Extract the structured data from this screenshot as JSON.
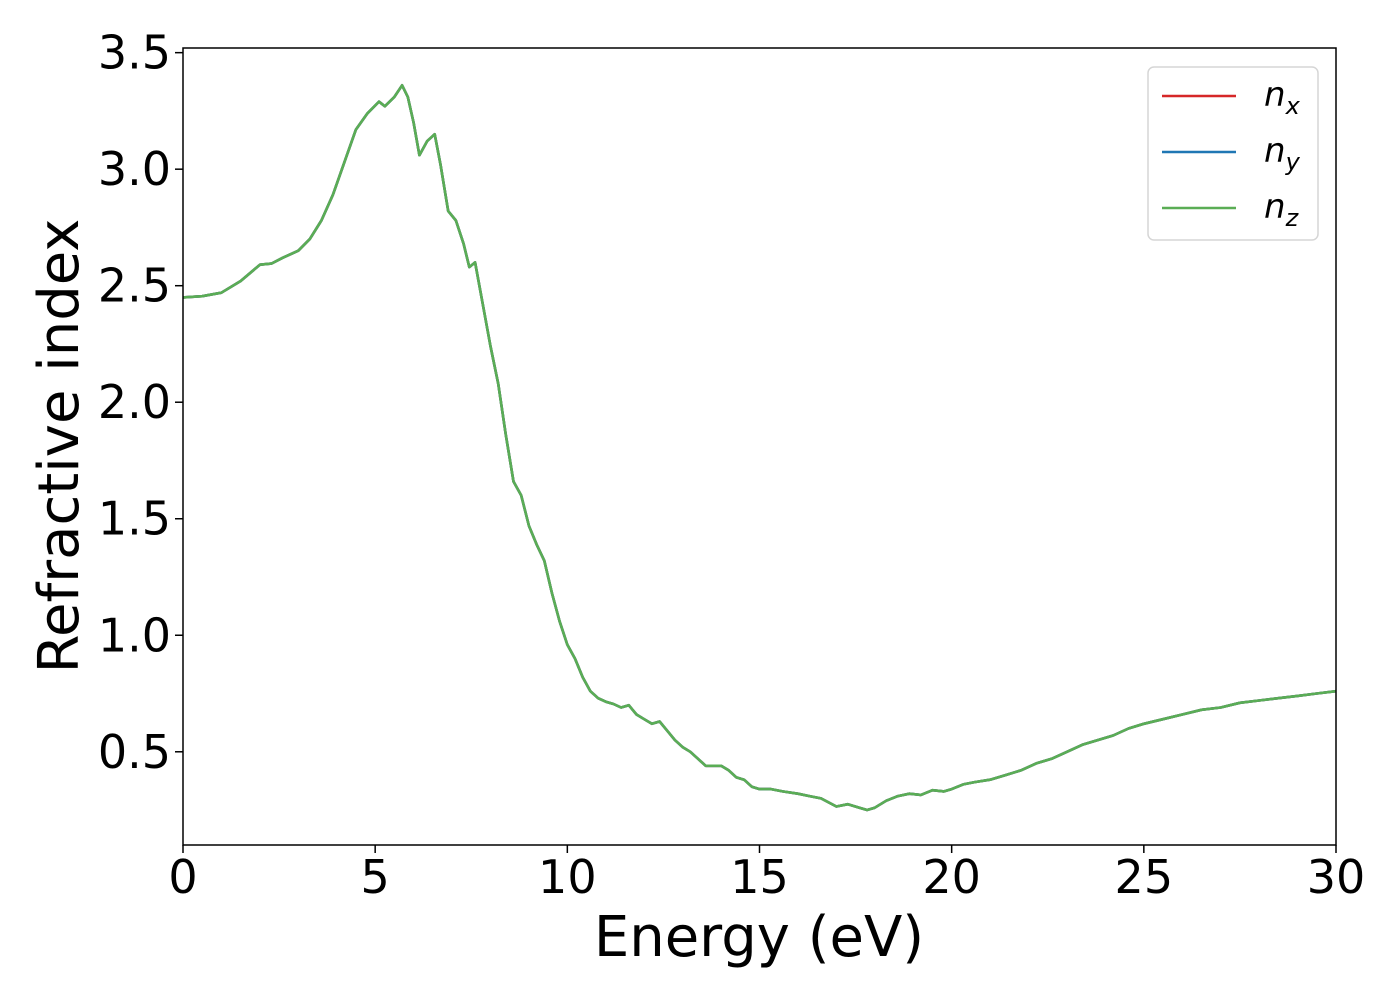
{
  "chart_data": {
    "type": "line",
    "title": "",
    "xlabel": "Energy (eV)",
    "ylabel": "Refractive index",
    "xlim": [
      0,
      30
    ],
    "ylim": [
      0.1,
      3.52
    ],
    "xticks": [
      0,
      5,
      10,
      15,
      20,
      25,
      30
    ],
    "yticks": [
      0.5,
      1.0,
      1.5,
      2.0,
      2.5,
      3.0,
      3.5
    ],
    "xtick_labels": [
      "0",
      "5",
      "10",
      "15",
      "20",
      "25",
      "30"
    ],
    "ytick_labels": [
      "0.5",
      "1.0",
      "1.5",
      "2.0",
      "2.5",
      "3.0",
      "3.5"
    ],
    "grid": false,
    "legend_position": "top-right",
    "series": [
      {
        "name": "n",
        "subscript": "x",
        "color": "#d62728",
        "points": "shared"
      },
      {
        "name": "n",
        "subscript": "y",
        "color": "#1f77b4",
        "points": "shared"
      },
      {
        "name": "n",
        "subscript": "z",
        "color": "#5aad55",
        "points": "shared"
      }
    ],
    "points": [
      [
        0.0,
        2.45
      ],
      [
        0.5,
        2.455
      ],
      [
        1.0,
        2.47
      ],
      [
        1.5,
        2.52
      ],
      [
        2.0,
        2.59
      ],
      [
        2.3,
        2.595
      ],
      [
        2.6,
        2.62
      ],
      [
        3.0,
        2.65
      ],
      [
        3.3,
        2.7
      ],
      [
        3.6,
        2.78
      ],
      [
        3.9,
        2.89
      ],
      [
        4.2,
        3.03
      ],
      [
        4.5,
        3.17
      ],
      [
        4.8,
        3.24
      ],
      [
        5.1,
        3.29
      ],
      [
        5.25,
        3.27
      ],
      [
        5.5,
        3.31
      ],
      [
        5.7,
        3.36
      ],
      [
        5.85,
        3.31
      ],
      [
        6.0,
        3.2
      ],
      [
        6.15,
        3.06
      ],
      [
        6.35,
        3.12
      ],
      [
        6.55,
        3.15
      ],
      [
        6.7,
        3.02
      ],
      [
        6.9,
        2.82
      ],
      [
        7.1,
        2.78
      ],
      [
        7.3,
        2.68
      ],
      [
        7.45,
        2.58
      ],
      [
        7.6,
        2.6
      ],
      [
        7.8,
        2.42
      ],
      [
        8.0,
        2.24
      ],
      [
        8.2,
        2.08
      ],
      [
        8.4,
        1.86
      ],
      [
        8.6,
        1.66
      ],
      [
        8.8,
        1.6
      ],
      [
        9.0,
        1.47
      ],
      [
        9.2,
        1.39
      ],
      [
        9.4,
        1.32
      ],
      [
        9.6,
        1.18
      ],
      [
        9.8,
        1.06
      ],
      [
        10.0,
        0.96
      ],
      [
        10.2,
        0.9
      ],
      [
        10.4,
        0.82
      ],
      [
        10.6,
        0.76
      ],
      [
        10.8,
        0.73
      ],
      [
        11.0,
        0.715
      ],
      [
        11.2,
        0.705
      ],
      [
        11.4,
        0.69
      ],
      [
        11.6,
        0.7
      ],
      [
        11.8,
        0.66
      ],
      [
        12.0,
        0.64
      ],
      [
        12.2,
        0.62
      ],
      [
        12.4,
        0.63
      ],
      [
        12.6,
        0.59
      ],
      [
        12.8,
        0.55
      ],
      [
        13.0,
        0.52
      ],
      [
        13.2,
        0.5
      ],
      [
        13.4,
        0.47
      ],
      [
        13.6,
        0.44
      ],
      [
        13.8,
        0.44
      ],
      [
        14.0,
        0.44
      ],
      [
        14.2,
        0.42
      ],
      [
        14.4,
        0.39
      ],
      [
        14.6,
        0.38
      ],
      [
        14.8,
        0.35
      ],
      [
        15.0,
        0.34
      ],
      [
        15.3,
        0.34
      ],
      [
        15.6,
        0.33
      ],
      [
        16.0,
        0.32
      ],
      [
        16.3,
        0.31
      ],
      [
        16.6,
        0.3
      ],
      [
        17.0,
        0.265
      ],
      [
        17.3,
        0.275
      ],
      [
        17.6,
        0.26
      ],
      [
        17.8,
        0.25
      ],
      [
        18.0,
        0.26
      ],
      [
        18.3,
        0.29
      ],
      [
        18.6,
        0.31
      ],
      [
        18.9,
        0.32
      ],
      [
        19.2,
        0.315
      ],
      [
        19.5,
        0.335
      ],
      [
        19.8,
        0.33
      ],
      [
        20.0,
        0.34
      ],
      [
        20.3,
        0.36
      ],
      [
        20.6,
        0.37
      ],
      [
        21.0,
        0.38
      ],
      [
        21.4,
        0.4
      ],
      [
        21.8,
        0.42
      ],
      [
        22.2,
        0.45
      ],
      [
        22.6,
        0.47
      ],
      [
        23.0,
        0.5
      ],
      [
        23.4,
        0.53
      ],
      [
        23.8,
        0.55
      ],
      [
        24.2,
        0.57
      ],
      [
        24.6,
        0.6
      ],
      [
        25.0,
        0.62
      ],
      [
        25.5,
        0.64
      ],
      [
        26.0,
        0.66
      ],
      [
        26.5,
        0.68
      ],
      [
        27.0,
        0.69
      ],
      [
        27.5,
        0.71
      ],
      [
        28.0,
        0.72
      ],
      [
        28.5,
        0.73
      ],
      [
        29.0,
        0.74
      ],
      [
        29.5,
        0.75
      ],
      [
        30.0,
        0.76
      ]
    ]
  }
}
